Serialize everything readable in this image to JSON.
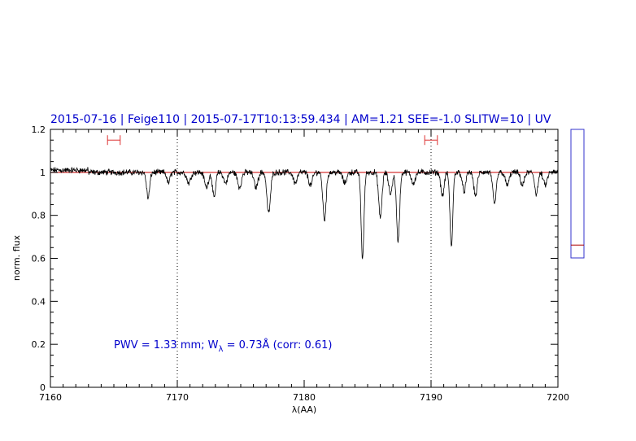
{
  "chart_data": {
    "type": "line",
    "title": "2015-07-16 | Feige110 | 2015-07-17T10:13:59.434 | AM=1.21 SEE=-1.0 SLITW=10 | UV",
    "xlabel": "λ(AA)",
    "ylabel": "norm. flux",
    "xlim": [
      7160,
      7200
    ],
    "ylim": [
      0,
      1.2
    ],
    "x_ticks": [
      "7160",
      "7170",
      "7180",
      "7190",
      "7200"
    ],
    "y_ticks": [
      "0",
      "0.2",
      "0.4",
      "0.6",
      "0.8",
      "1",
      "1.2"
    ],
    "vertical_markers_x": [
      7170,
      7190
    ],
    "continuum_level": 1.0,
    "continuum_color": "#cc0000",
    "spectrum_color": "#000000",
    "annotation": {
      "pwv_text": "PWV  =  1.33  mm;  W",
      "w_subscript": "λ",
      "w_text": "  =  0.73Å  (corr:  0.61)"
    },
    "error_bars": [
      {
        "x": 7165.0,
        "half_width": 0.5,
        "y": 1.15
      },
      {
        "x": 7190.0,
        "half_width": 0.5,
        "y": 1.15
      }
    ],
    "absorption_lines": [
      {
        "center": 7167.7,
        "depth": 0.12,
        "width": 0.12
      },
      {
        "center": 7169.3,
        "depth": 0.05,
        "width": 0.12
      },
      {
        "center": 7170.9,
        "depth": 0.05,
        "width": 0.15
      },
      {
        "center": 7172.3,
        "depth": 0.07,
        "width": 0.15
      },
      {
        "center": 7172.9,
        "depth": 0.12,
        "width": 0.12
      },
      {
        "center": 7173.8,
        "depth": 0.05,
        "width": 0.15
      },
      {
        "center": 7174.9,
        "depth": 0.07,
        "width": 0.15
      },
      {
        "center": 7176.2,
        "depth": 0.07,
        "width": 0.15
      },
      {
        "center": 7177.2,
        "depth": 0.19,
        "width": 0.14
      },
      {
        "center": 7179.3,
        "depth": 0.05,
        "width": 0.15
      },
      {
        "center": 7180.5,
        "depth": 0.06,
        "width": 0.15
      },
      {
        "center": 7181.6,
        "depth": 0.22,
        "width": 0.13
      },
      {
        "center": 7183.2,
        "depth": 0.05,
        "width": 0.15
      },
      {
        "center": 7184.6,
        "depth": 0.4,
        "width": 0.11
      },
      {
        "center": 7186.0,
        "depth": 0.21,
        "width": 0.13
      },
      {
        "center": 7186.8,
        "depth": 0.1,
        "width": 0.14
      },
      {
        "center": 7187.4,
        "depth": 0.32,
        "width": 0.12
      },
      {
        "center": 7188.6,
        "depth": 0.05,
        "width": 0.15
      },
      {
        "center": 7190.9,
        "depth": 0.11,
        "width": 0.13
      },
      {
        "center": 7191.6,
        "depth": 0.35,
        "width": 0.11
      },
      {
        "center": 7192.6,
        "depth": 0.09,
        "width": 0.13
      },
      {
        "center": 7193.5,
        "depth": 0.11,
        "width": 0.13
      },
      {
        "center": 7195.0,
        "depth": 0.15,
        "width": 0.13
      },
      {
        "center": 7196.0,
        "depth": 0.06,
        "width": 0.15
      },
      {
        "center": 7197.2,
        "depth": 0.06,
        "width": 0.15
      },
      {
        "center": 7198.3,
        "depth": 0.1,
        "width": 0.13
      },
      {
        "center": 7199.0,
        "depth": 0.06,
        "width": 0.15
      }
    ],
    "side_bar": {
      "ylim": [
        0,
        1.2
      ],
      "marker_value": 0.66,
      "frame_color": "#3333cc",
      "marker_color": "#aa0000"
    },
    "grid": false,
    "legend": "none"
  }
}
